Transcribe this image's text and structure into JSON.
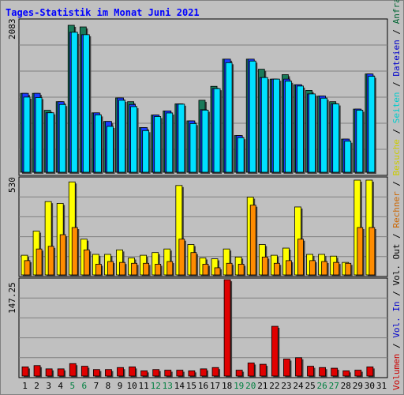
{
  "title": "Tages-Statistik im Monat Juni 2021",
  "right_legend": [
    {
      "text": "Volumen",
      "color": "#cc0000"
    },
    {
      "text": " / ",
      "color": "#000000"
    },
    {
      "text": "Vol. In",
      "color": "#0000cc"
    },
    {
      "text": " / ",
      "color": "#000000"
    },
    {
      "text": "Vol. Out",
      "color": "#000000"
    },
    {
      "text": " / ",
      "color": "#000000"
    },
    {
      "text": "Rechner",
      "color": "#cc6600"
    },
    {
      "text": " / ",
      "color": "#000000"
    },
    {
      "text": "Besuche",
      "color": "#cccc00"
    },
    {
      "text": " / ",
      "color": "#000000"
    },
    {
      "text": "Seiten",
      "color": "#00cccc"
    },
    {
      "text": " / ",
      "color": "#000000"
    },
    {
      "text": "Dateien",
      "color": "#0000cc"
    },
    {
      "text": " / ",
      "color": "#000000"
    },
    {
      "text": "Anfragen",
      "color": "#006633"
    }
  ],
  "colors": {
    "anfragen": "#1a7a5a",
    "dateien": "#1a3cff",
    "seiten": "#00e0ff",
    "besuche": "#ffff00",
    "rechner": "#ff8c00",
    "volumen": "#e00000",
    "weekend_label": "#008040",
    "title": "#0000ff"
  },
  "chart_data": [
    {
      "type": "bar",
      "panel": "top",
      "ymax_label": "2083",
      "ylim": [
        0,
        2083
      ],
      "categories": [
        "1",
        "2",
        "3",
        "4",
        "5",
        "6",
        "7",
        "8",
        "9",
        "10",
        "11",
        "12",
        "13",
        "14",
        "15",
        "16",
        "17",
        "18",
        "19",
        "20",
        "21",
        "22",
        "23",
        "24",
        "25",
        "26",
        "27",
        "28",
        "29",
        "30",
        "31"
      ],
      "series": [
        {
          "name": "Anfragen",
          "values": [
            1118,
            1118,
            878,
            1000,
            2083,
            2060,
            842,
            720,
            1053,
            1000,
            633,
            811,
            869,
            969,
            728,
            1020,
            1218,
            1603,
            520,
            1603,
            1460,
            1320,
            1383,
            1240,
            1160,
            1080,
            1000,
            470,
            895,
            1393,
            null
          ]
        },
        {
          "name": "Dateien",
          "values": [
            1118,
            1118,
            843,
            1000,
            1984,
            1950,
            842,
            720,
            1053,
            960,
            633,
            811,
            869,
            969,
            728,
            886,
            1185,
            1603,
            520,
            1603,
            1342,
            1320,
            1320,
            1240,
            1110,
            1080,
            968,
            470,
            895,
            1393,
            null
          ]
        },
        {
          "name": "Seiten",
          "values": [
            1065,
            1059,
            843,
            960,
            1984,
            1950,
            813,
            650,
            1020,
            930,
            590,
            790,
            840,
            965,
            690,
            880,
            1185,
            1553,
            490,
            1576,
            1342,
            1320,
            1290,
            1222,
            1110,
            1050,
            968,
            440,
            880,
            1360,
            null
          ]
        }
      ]
    },
    {
      "type": "bar",
      "panel": "middle",
      "ymax_label": "530",
      "ylim": [
        0,
        530
      ],
      "categories": [
        "1",
        "2",
        "3",
        "4",
        "5",
        "6",
        "7",
        "8",
        "9",
        "10",
        "11",
        "12",
        "13",
        "14",
        "15",
        "16",
        "17",
        "18",
        "19",
        "20",
        "21",
        "22",
        "23",
        "24",
        "25",
        "26",
        "27",
        "28",
        "29",
        "30",
        "31"
      ],
      "series": [
        {
          "name": "Besuche",
          "values": [
            110,
            245,
            410,
            400,
            520,
            200,
            115,
            115,
            140,
            95,
            110,
            125,
            145,
            500,
            170,
            95,
            90,
            145,
            100,
            435,
            170,
            110,
            150,
            380,
            115,
            115,
            105,
            70,
            530,
            530,
            null
          ]
        },
        {
          "name": "Rechner",
          "values": [
            80,
            145,
            160,
            225,
            265,
            140,
            60,
            75,
            70,
            65,
            65,
            60,
            75,
            200,
            125,
            60,
            40,
            65,
            60,
            390,
            100,
            65,
            80,
            200,
            80,
            75,
            70,
            65,
            265,
            265,
            null
          ]
        }
      ]
    },
    {
      "type": "bar",
      "panel": "bottom",
      "ymax_label": "147.25",
      "ylim": [
        0,
        147.25
      ],
      "categories": [
        "1",
        "2",
        "3",
        "4",
        "5",
        "6",
        "7",
        "8",
        "9",
        "10",
        "11",
        "12",
        "13",
        "14",
        "15",
        "16",
        "17",
        "18",
        "19",
        "20",
        "21",
        "22",
        "23",
        "24",
        "25",
        "26",
        "27",
        "28",
        "29",
        "30",
        "31"
      ],
      "series": [
        {
          "name": "Volumen",
          "values": [
            14,
            16,
            11,
            11,
            19,
            15,
            10,
            10,
            13,
            14,
            8,
            10,
            9,
            9,
            8,
            11,
            13,
            147.25,
            9,
            20,
            18,
            76,
            26,
            28,
            15,
            13,
            12,
            8,
            9,
            14,
            null
          ]
        }
      ]
    }
  ]
}
